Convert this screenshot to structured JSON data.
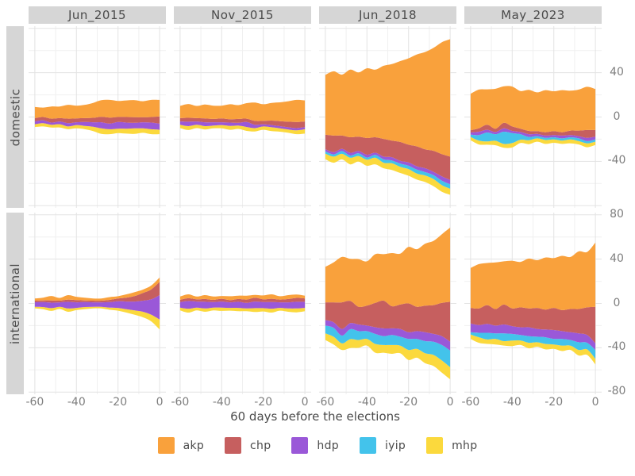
{
  "facets": {
    "rows": [
      "domestic",
      "international"
    ],
    "cols": [
      "Jun_2015",
      "Nov_2015",
      "Jun_2018",
      "May_2023"
    ]
  },
  "x_axis": {
    "title": "60 days before the elections",
    "ticks": [
      -60,
      -40,
      -20,
      0
    ]
  },
  "y_axis": {
    "side": "right",
    "top_row_ticks": [
      40,
      0,
      -40
    ],
    "bottom_row_ticks": [
      80,
      40,
      0,
      -40,
      -80
    ],
    "range": [
      -82,
      82
    ]
  },
  "grid": {
    "x_major": [
      -60,
      -40,
      -20,
      0
    ],
    "x_minor": [
      -50,
      -30,
      -10
    ],
    "y_major": [
      -80,
      -40,
      0,
      40,
      80
    ],
    "y_minor": [
      -60,
      -20,
      20,
      60
    ]
  },
  "legend": {
    "parties": [
      "akp",
      "chp",
      "hdp",
      "iyip",
      "mhp"
    ]
  },
  "colors": {
    "akp": "#F9A13C",
    "chp": "#C65F5F",
    "hdp": "#9A58D8",
    "iyip": "#43C3EB",
    "mhp": "#FBD93D",
    "strip_bg": "#d6d6d6",
    "grid_major": "#e3e3e3",
    "grid_minor": "#f0f0f0",
    "tick_text": "#7e7e7e",
    "label_text": "#4b4b4b"
  },
  "chart_data": {
    "type": "area",
    "variant": "streamgraph-silhouette",
    "stack_order_bottom_to_top": [
      "mhp",
      "iyip",
      "hdp",
      "chp",
      "akp"
    ],
    "x": [
      -60,
      -56,
      -52,
      -48,
      -44,
      -40,
      -36,
      -32,
      -28,
      -24,
      -20,
      -16,
      -12,
      -8,
      -4,
      0
    ],
    "panels": [
      {
        "row": "domestic",
        "col": "Jun_2015",
        "series": {
          "akp": [
            10,
            8.5,
            11,
            10.5,
            12.5,
            11.5,
            12,
            13.5,
            15,
            16,
            14.5,
            15,
            15.5,
            14.5,
            15.5,
            15
          ],
          "chp": [
            3,
            3,
            3.5,
            3,
            4,
            3.5,
            3.5,
            4,
            5,
            5.5,
            4.5,
            5,
            5,
            4.5,
            5,
            6.5
          ],
          "hdp": [
            2.5,
            2.5,
            2,
            2.5,
            3,
            2.5,
            3.5,
            4,
            5.5,
            5,
            6,
            5.5,
            5,
            5.5,
            6,
            5.5
          ],
          "iyip": [
            0,
            0,
            0,
            0,
            0,
            0,
            0,
            0,
            0,
            0,
            0,
            0,
            0,
            0,
            0,
            0
          ],
          "mhp": [
            2.5,
            3,
            2.5,
            3,
            2.5,
            3,
            3,
            4,
            5,
            4.5,
            4,
            4.5,
            5,
            4,
            4.5,
            4
          ]
        }
      },
      {
        "row": "domestic",
        "col": "Nov_2015",
        "series": {
          "akp": [
            11,
            12.5,
            11,
            12.5,
            12,
            11.5,
            13.5,
            12.5,
            14,
            16.5,
            15,
            16,
            17,
            18.5,
            20,
            19
          ],
          "chp": [
            3,
            3.5,
            3,
            3.5,
            3,
            3.5,
            3,
            3.5,
            3,
            3.5,
            3,
            4,
            4.5,
            5,
            5.5,
            5
          ],
          "hdp": [
            3,
            4,
            3,
            3.5,
            3,
            2.5,
            3,
            2.5,
            4.5,
            3,
            2,
            2,
            2,
            2,
            2,
            2
          ],
          "iyip": [
            0,
            0,
            0,
            0,
            0,
            0,
            0,
            0,
            0,
            0,
            0,
            0,
            0,
            0,
            0,
            0
          ],
          "mhp": [
            3,
            3.5,
            3,
            3,
            2.5,
            3,
            3.5,
            3,
            3.5,
            3,
            3,
            3.5,
            3,
            3,
            3.5,
            4
          ]
        }
      },
      {
        "row": "domestic",
        "col": "Jun_2018",
        "series": {
          "akp": [
            54,
            58,
            55,
            61,
            58,
            63,
            61,
            66,
            69,
            73,
            78,
            83,
            88,
            93,
            101,
            106
          ],
          "chp": [
            13,
            15,
            12,
            14,
            13,
            15,
            14,
            16,
            15,
            17,
            16,
            18,
            17,
            19,
            20,
            21
          ],
          "hdp": [
            2,
            2,
            2,
            2.5,
            2,
            2.5,
            2,
            2.5,
            3,
            2.5,
            3,
            3,
            3.5,
            3,
            4,
            4
          ],
          "iyip": [
            2,
            2,
            2.5,
            2,
            2.5,
            2,
            2.5,
            3,
            2.5,
            3,
            3,
            3.5,
            3,
            3.5,
            4,
            4
          ],
          "mhp": [
            5,
            5.5,
            5,
            6,
            5,
            5.5,
            6,
            5,
            6,
            5.5,
            6,
            5.5,
            6,
            6.5,
            6,
            5.5
          ]
        }
      },
      {
        "row": "domestic",
        "col": "May_2023",
        "series": {
          "akp": [
            33,
            35,
            32,
            36,
            33,
            36,
            34,
            37,
            35,
            38,
            36,
            38,
            36,
            37,
            39,
            37
          ],
          "chp": [
            2,
            3,
            4.5,
            3,
            5,
            4,
            3,
            3,
            2.5,
            3,
            3.5,
            3,
            4,
            5,
            7,
            6
          ],
          "hdp": [
            2,
            3,
            2.5,
            2,
            3,
            2,
            2,
            2.5,
            2,
            2,
            2,
            2.5,
            2,
            2,
            3,
            2.5
          ],
          "iyip": [
            2,
            5,
            8,
            6,
            11,
            9,
            5,
            3,
            2,
            2,
            2,
            2,
            2,
            2.5,
            2,
            2
          ],
          "mhp": [
            3,
            3.5,
            3,
            4,
            3.5,
            4,
            3,
            3.5,
            3,
            3.5,
            3,
            3,
            3.5,
            3,
            3.5,
            3
          ]
        }
      },
      {
        "row": "international",
        "col": "Jun_2015",
        "series": {
          "akp": [
            2,
            2.5,
            4,
            2.5,
            4,
            3,
            2.5,
            2,
            2,
            2.5,
            2,
            3,
            3.5,
            3,
            3.5,
            4
          ],
          "chp": [
            1.5,
            1.5,
            2,
            1.5,
            2,
            2,
            1.5,
            1.5,
            1.5,
            2,
            2.5,
            3.5,
            5,
            7,
            9,
            12
          ],
          "hdp": [
            4,
            4.5,
            5,
            4,
            6,
            5,
            4.5,
            4,
            4,
            5,
            6,
            7,
            8,
            10,
            14,
            22
          ],
          "iyip": [
            0,
            0,
            0,
            0,
            0,
            0,
            0,
            0,
            0,
            0,
            0,
            0,
            0,
            0,
            0,
            0
          ],
          "mhp": [
            1.5,
            2,
            2.5,
            2,
            3,
            2,
            2,
            1.5,
            1.5,
            2,
            2.5,
            3,
            4,
            5,
            6,
            9
          ]
        }
      },
      {
        "row": "international",
        "col": "Nov_2015",
        "series": {
          "akp": [
            3,
            3.5,
            2.5,
            3.5,
            3,
            2.5,
            3.5,
            3,
            3.5,
            2.5,
            3.5,
            4,
            3,
            3.5,
            3,
            2.5
          ],
          "chp": [
            2,
            2.5,
            2,
            2.5,
            2,
            2.5,
            2,
            2.5,
            3,
            3.5,
            2.5,
            3,
            2.5,
            3,
            3.5,
            3
          ],
          "hdp": [
            5,
            7,
            5.5,
            6,
            5,
            5.5,
            5,
            5.5,
            5,
            6,
            5.5,
            6,
            5,
            5.5,
            6,
            5.5
          ],
          "iyip": [
            0,
            0,
            0,
            0,
            0,
            0,
            0,
            0,
            0,
            0,
            0,
            0,
            0,
            0,
            0,
            0
          ],
          "mhp": [
            2.5,
            3.5,
            2.5,
            3,
            2.5,
            3,
            2.5,
            3,
            2.5,
            3.5,
            3,
            3.5,
            2.5,
            3,
            3.5,
            3
          ]
        }
      },
      {
        "row": "international",
        "col": "Jun_2018",
        "series": {
          "akp": [
            32,
            36,
            41,
            38,
            43,
            40,
            44,
            42,
            48,
            46,
            51,
            52,
            56,
            58,
            62,
            67
          ],
          "chp": [
            16,
            18,
            24,
            20,
            16,
            18,
            22,
            25,
            20,
            22,
            26,
            22,
            24,
            26,
            30,
            36
          ],
          "hdp": [
            5,
            5,
            6,
            5.5,
            6,
            5,
            6,
            7,
            6,
            7,
            6,
            7,
            8,
            7,
            8,
            8
          ],
          "iyip": [
            7,
            8,
            7,
            9,
            8,
            7,
            9,
            8,
            9,
            8,
            10,
            9,
            11,
            12,
            14,
            15
          ],
          "mhp": [
            6,
            7,
            6,
            8,
            7,
            6,
            8,
            7,
            8,
            7,
            9,
            8,
            9,
            10,
            11,
            11
          ]
        }
      },
      {
        "row": "international",
        "col": "May_2023",
        "series": {
          "akp": [
            36,
            40,
            38,
            42,
            39,
            43,
            41,
            45,
            43,
            47,
            45,
            49,
            47,
            52,
            50,
            58
          ],
          "chp": [
            14,
            15,
            17,
            15,
            18,
            16,
            18,
            17,
            19,
            18,
            20,
            19,
            21,
            22,
            25,
            33
          ],
          "hdp": [
            8,
            7,
            8,
            7,
            8,
            7,
            7,
            8,
            7,
            7,
            8,
            7,
            7,
            8,
            7,
            6
          ],
          "iyip": [
            2,
            4,
            6,
            5,
            7,
            6,
            5,
            6,
            5,
            6,
            5,
            6,
            5,
            7,
            6,
            8
          ],
          "mhp": [
            4,
            5,
            4,
            5,
            4,
            5,
            4,
            5,
            4,
            5,
            4,
            5,
            4,
            5,
            5,
            5
          ]
        }
      }
    ]
  }
}
